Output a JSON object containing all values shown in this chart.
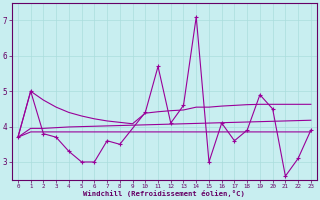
{
  "xlabel": "Windchill (Refroidissement éolien,°C)",
  "bg_color": "#c8eef0",
  "line_color": "#990099",
  "grid_color": "#aadddd",
  "axis_color": "#660066",
  "xlim": [
    -0.5,
    23.5
  ],
  "ylim": [
    2.5,
    7.5
  ],
  "yticks": [
    3,
    4,
    5,
    6,
    7
  ],
  "xticks": [
    0,
    1,
    2,
    3,
    4,
    5,
    6,
    7,
    8,
    9,
    10,
    11,
    12,
    13,
    14,
    15,
    16,
    17,
    18,
    19,
    20,
    21,
    22,
    23
  ],
  "series": [
    [
      3.7,
      5.0,
      3.8,
      3.7,
      3.3,
      3.0,
      3.0,
      3.6,
      3.5,
      null,
      4.4,
      5.7,
      4.1,
      4.6,
      7.1,
      3.0,
      4.1,
      3.6,
      3.9,
      4.9,
      4.5,
      2.6,
      3.1,
      3.9
    ],
    [
      3.7,
      3.85,
      3.85,
      3.85,
      3.85,
      3.85,
      3.85,
      3.85,
      3.85,
      3.85,
      3.85,
      3.85,
      3.85,
      3.85,
      3.85,
      3.85,
      3.85,
      3.85,
      3.85,
      3.85,
      3.85,
      3.85,
      3.85,
      3.85
    ],
    [
      3.7,
      3.95,
      3.95,
      3.97,
      3.99,
      4.0,
      4.01,
      4.02,
      4.03,
      4.04,
      4.05,
      4.06,
      4.07,
      4.08,
      4.09,
      4.1,
      4.11,
      4.12,
      4.13,
      4.14,
      4.15,
      4.16,
      4.17,
      4.18
    ],
    [
      3.7,
      5.0,
      4.75,
      4.55,
      4.4,
      4.3,
      4.22,
      4.16,
      4.12,
      4.08,
      4.38,
      4.42,
      4.45,
      4.47,
      4.55,
      4.55,
      4.58,
      4.6,
      4.62,
      4.63,
      4.63,
      4.63,
      4.63,
      4.63
    ]
  ]
}
